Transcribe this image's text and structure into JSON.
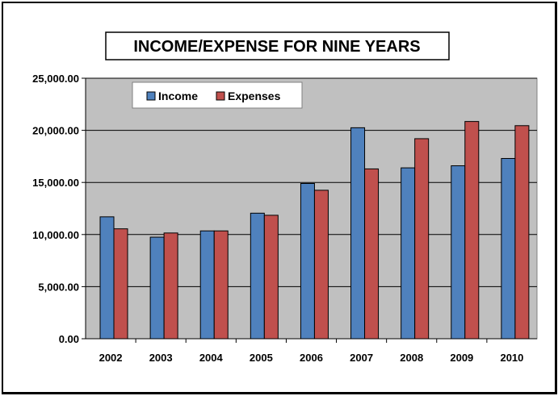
{
  "chart_data": {
    "type": "bar",
    "title": "INCOME/EXPENSE FOR NINE YEARS",
    "xlabel": "",
    "ylabel": "",
    "categories": [
      "2002",
      "2003",
      "2004",
      "2005",
      "2006",
      "2007",
      "2008",
      "2009",
      "2010"
    ],
    "series": [
      {
        "name": "Income",
        "color": "#4F81BD",
        "values": [
          11700,
          9750,
          10350,
          12050,
          14900,
          20250,
          16400,
          16600,
          17300
        ]
      },
      {
        "name": "Expenses",
        "color": "#C0504D",
        "values": [
          10550,
          10150,
          10350,
          11850,
          14250,
          16300,
          19200,
          20850,
          20450
        ]
      }
    ],
    "ylim": [
      0,
      25000
    ],
    "yticks": [
      "0.00",
      "5,000.00",
      "10,000.00",
      "15,000.00",
      "20,000.00",
      "25,000.00"
    ],
    "ytick_values": [
      0,
      5000,
      10000,
      15000,
      20000,
      25000
    ],
    "grid": true,
    "legend_position": "top-left inside plot",
    "plot_background": "#C0C0C0"
  }
}
